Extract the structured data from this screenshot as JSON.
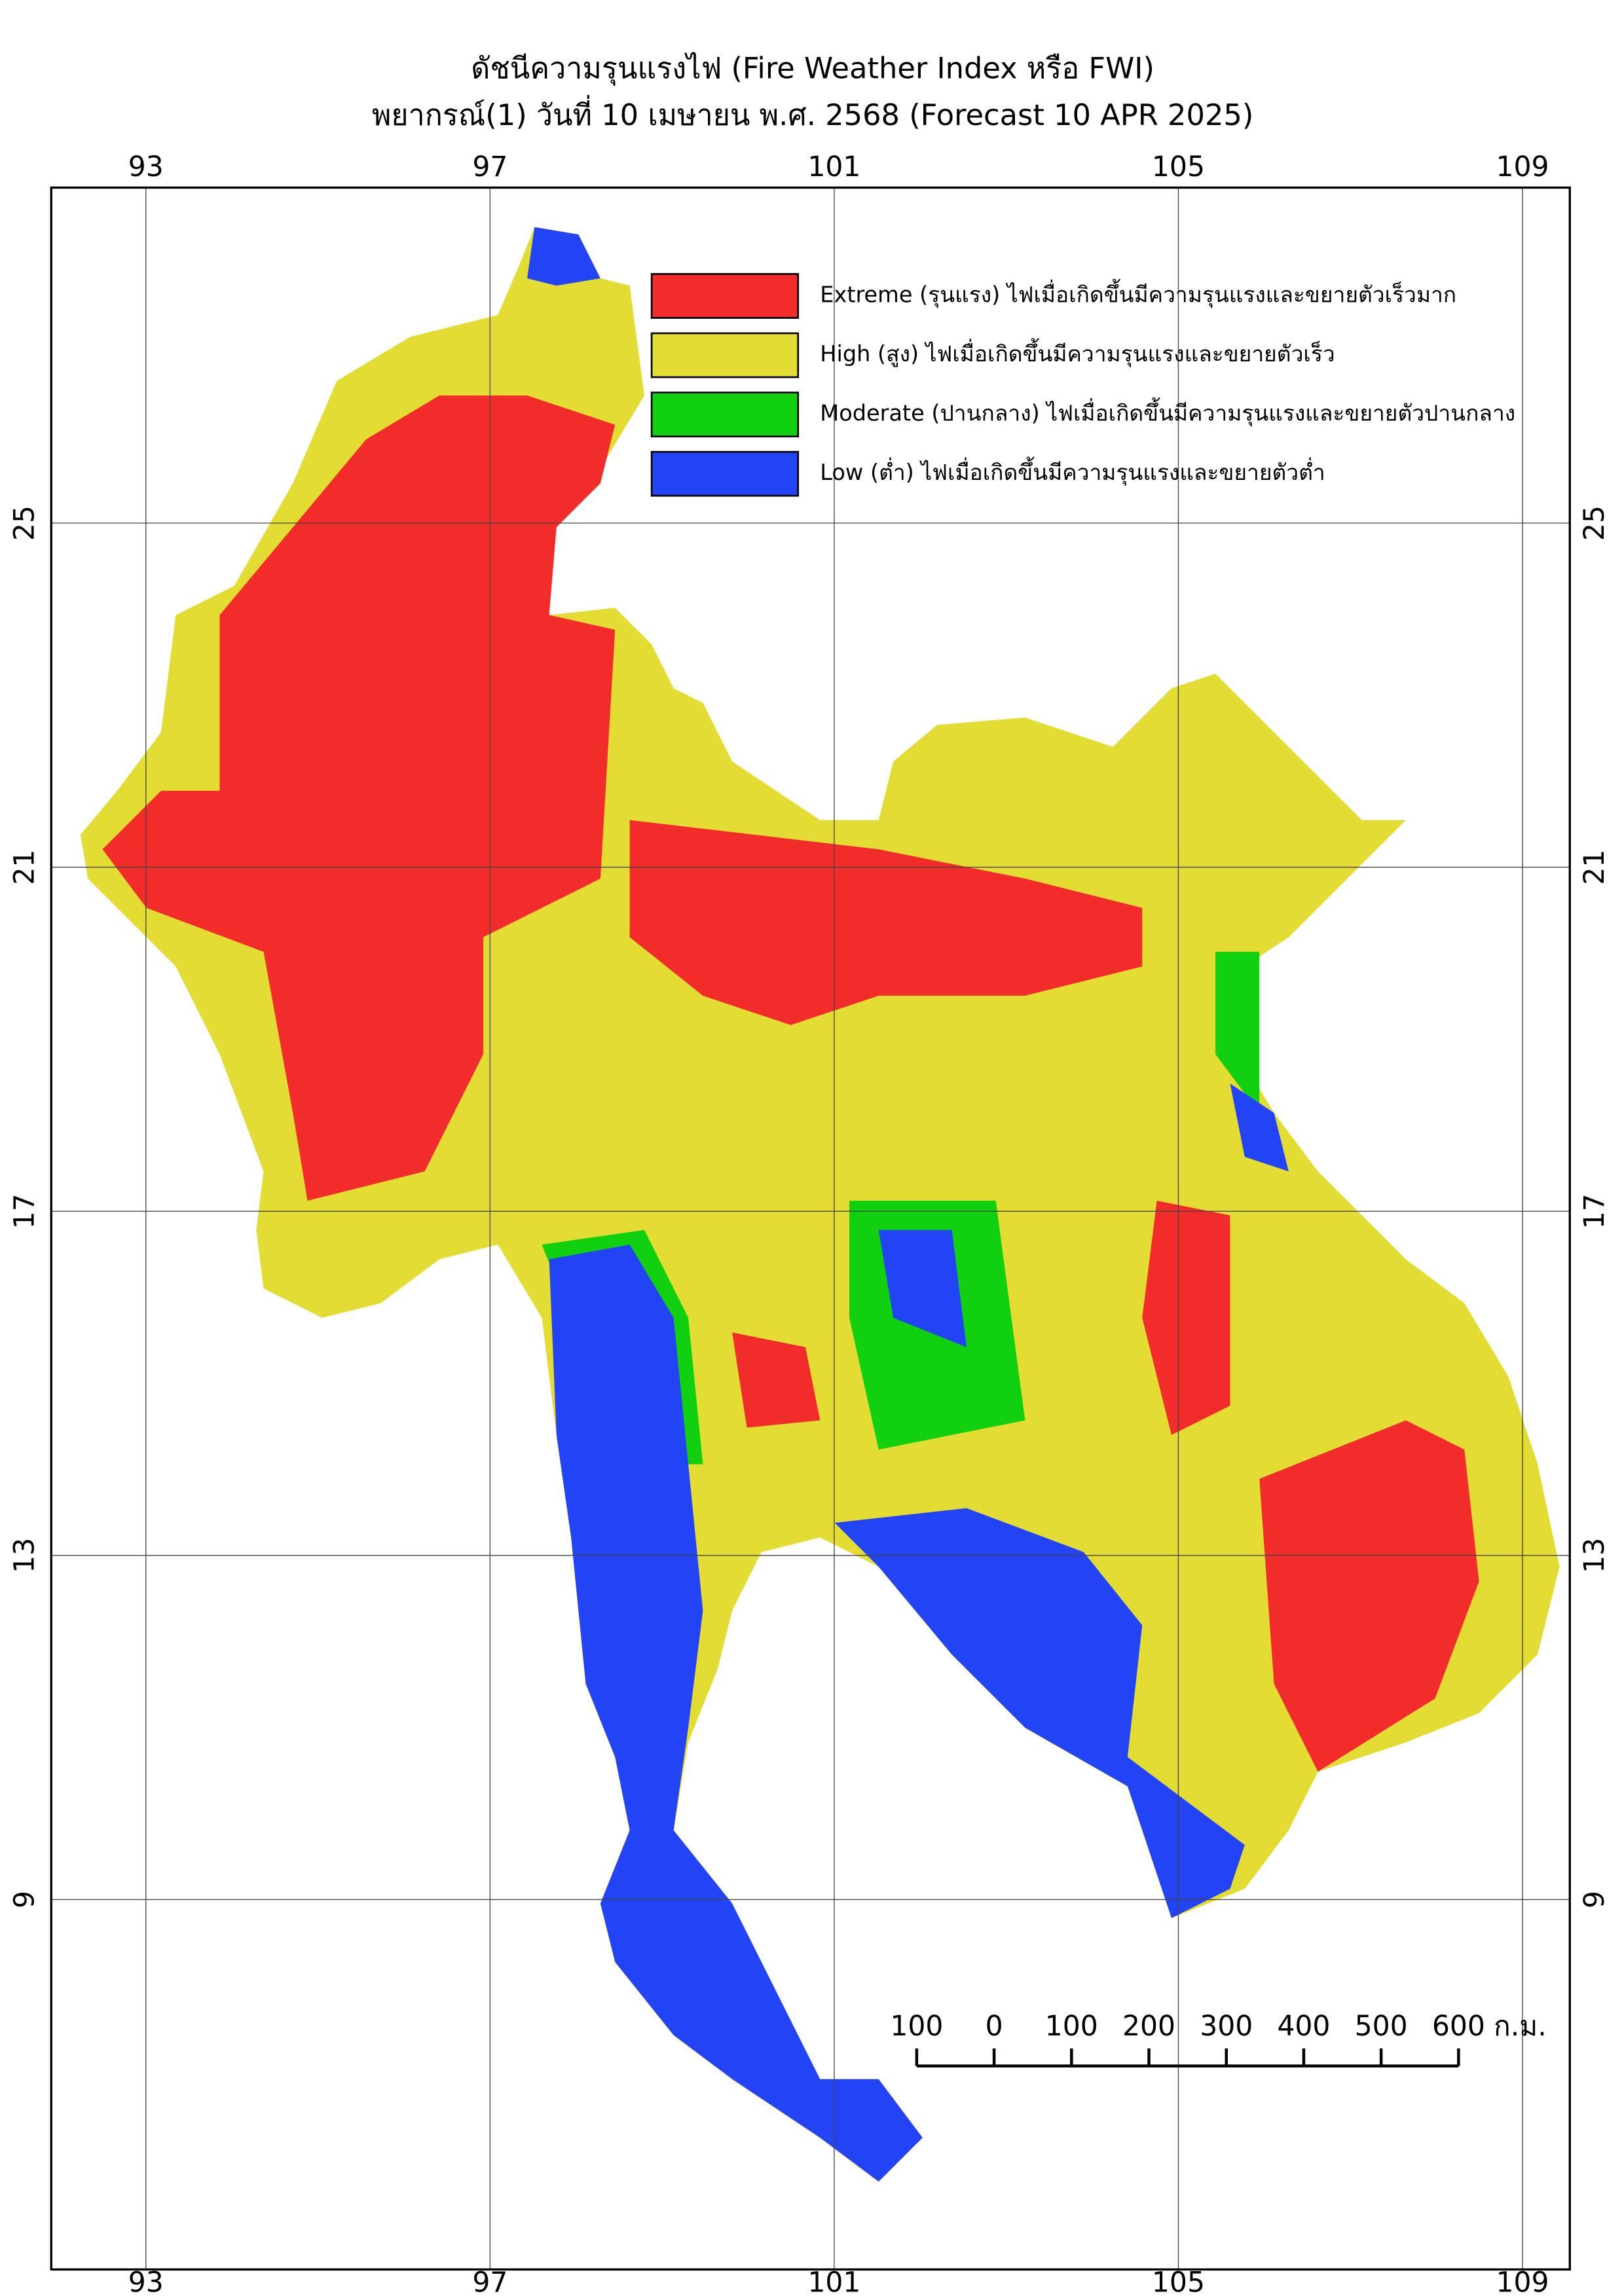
{
  "title": "ดัชนีความรุนแรงไฟ (Fire Weather Index หรือ FWI)",
  "subtitle": "พยากรณ์(1) วันที่ 10 เมษายน พ.ศ. 2568 (Forecast 10 APR 2025)",
  "map": {
    "xlim": [
      91.9,
      109.55
    ],
    "ylim": [
      4.7,
      28.9
    ],
    "xticks": [
      93,
      97,
      101,
      105,
      109
    ],
    "yticks": [
      25,
      21,
      17,
      13,
      9
    ],
    "grid": true
  },
  "legend": [
    {
      "label": "Extreme (รุนแรง) ไฟเมื่อเกิดขึ้นมีความรุนแรงและขยายตัวเร็วมาก",
      "color": "#f22b2b"
    },
    {
      "label": "High (สูง) ไฟเมื่อเกิดขึ้นมีความรุนแรงและขยายตัวเร็ว",
      "color": "#e3dc32"
    },
    {
      "label": "Moderate (ปานกลาง) ไฟเมื่อเกิดขึ้นมีความรุนแรงและขยายตัวปานกลาง",
      "color": "#10d010"
    },
    {
      "label": "Low (ต่ำ) ไฟเมื่อเกิดขึ้นมีความรุนแรงและขยายตัวต่ำ",
      "color": "#2244f5"
    }
  ],
  "scale_bar": {
    "ticks": [
      {
        "value": -100,
        "label": "100"
      },
      0,
      100,
      200,
      300,
      400,
      500,
      600
    ],
    "unit": "ก.ม."
  }
}
